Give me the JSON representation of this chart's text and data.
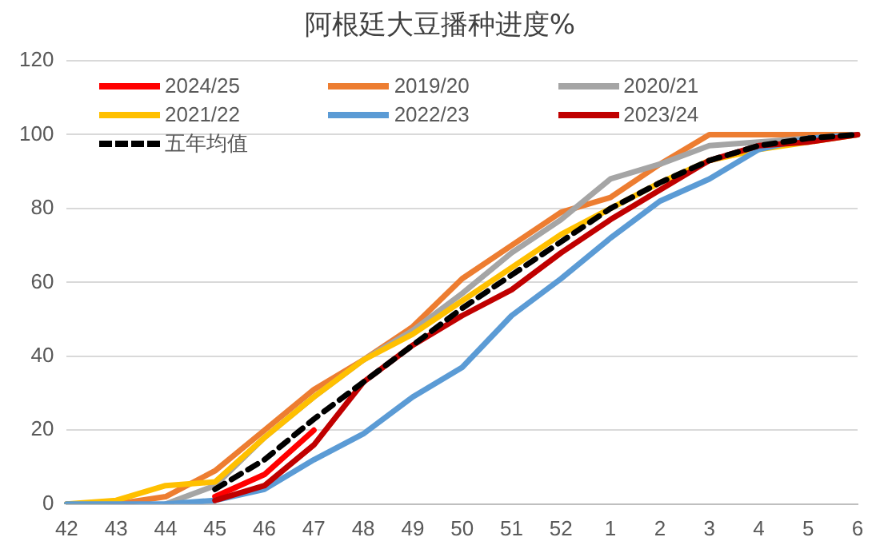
{
  "chart_data": {
    "type": "line",
    "title": "阿根廷大豆播种进度%",
    "categories": [
      "42",
      "43",
      "44",
      "45",
      "46",
      "47",
      "48",
      "49",
      "50",
      "51",
      "52",
      "1",
      "2",
      "3",
      "4",
      "5",
      "6"
    ],
    "ylim": [
      0,
      120
    ],
    "yticks": [
      0,
      20,
      40,
      60,
      80,
      100,
      120
    ],
    "grid": "y",
    "legend": "top",
    "marker": "none",
    "series": [
      {
        "name": "2024/25",
        "color": "#ff0000",
        "values": [
          null,
          null,
          null,
          2,
          8,
          20,
          null,
          null,
          null,
          null,
          null,
          null,
          null,
          null,
          null,
          null,
          null
        ]
      },
      {
        "name": "2019/20",
        "color": "#ed7d31",
        "values": [
          0,
          0,
          2,
          9,
          20,
          31,
          39,
          48,
          61,
          70,
          79,
          83,
          92,
          100,
          100,
          100,
          100
        ]
      },
      {
        "name": "2020/21",
        "color": "#a5a5a5",
        "values": [
          null,
          null,
          0,
          5,
          18,
          29,
          39,
          47,
          57,
          68,
          77,
          88,
          92,
          97,
          98,
          99,
          100
        ]
      },
      {
        "name": "2021/22",
        "color": "#ffc000",
        "values": [
          0,
          1,
          5,
          6,
          18,
          29,
          39,
          46,
          55,
          64,
          73,
          80,
          87,
          93,
          96,
          98,
          100
        ]
      },
      {
        "name": "2022/23",
        "color": "#5b9bd5",
        "values": [
          0,
          0,
          0,
          1,
          4,
          12,
          19,
          29,
          37,
          51,
          61,
          72,
          82,
          88,
          96,
          99,
          100
        ]
      },
      {
        "name": "2023/24",
        "color": "#c00000",
        "values": [
          null,
          null,
          null,
          1,
          5,
          16,
          33,
          43,
          51,
          58,
          68,
          77,
          85,
          93,
          97,
          98,
          100
        ]
      },
      {
        "name": "五年均值",
        "color": "#000000",
        "line_style": "dashed",
        "values": [
          null,
          null,
          null,
          4,
          12,
          23,
          33,
          43,
          53,
          62,
          71,
          80,
          87,
          93,
          97,
          99,
          100
        ]
      }
    ]
  }
}
